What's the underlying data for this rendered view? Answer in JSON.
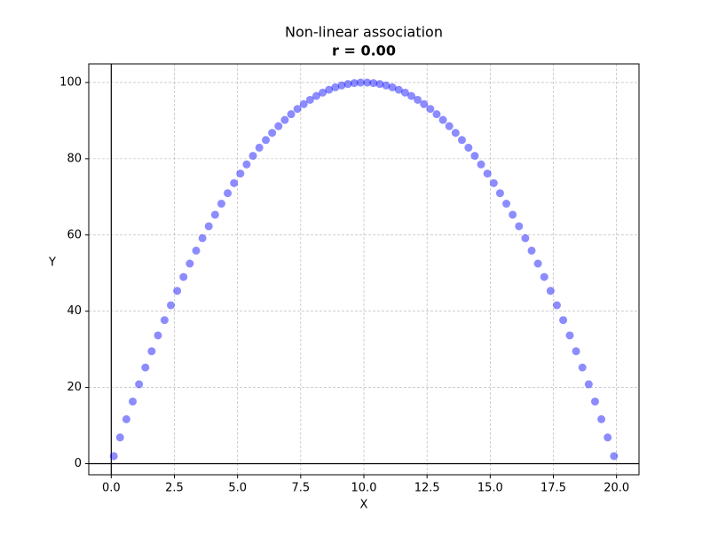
{
  "chart_data": {
    "type": "scatter",
    "title": "Non-linear association",
    "subtitle": "r = 0.00",
    "x_label": "X",
    "y_label": "Y",
    "series": [
      {
        "color": "#0000ff",
        "alpha": 0.45,
        "x": [
          0.1,
          0.35,
          0.6,
          0.85,
          1.1,
          1.35,
          1.6,
          1.85,
          2.11,
          2.36,
          2.61,
          2.86,
          3.11,
          3.36,
          3.61,
          3.86,
          4.11,
          4.36,
          4.61,
          4.86,
          5.11,
          5.36,
          5.61,
          5.86,
          6.12,
          6.37,
          6.62,
          6.87,
          7.12,
          7.37,
          7.62,
          7.87,
          8.12,
          8.37,
          8.62,
          8.87,
          9.12,
          9.37,
          9.62,
          9.87,
          10.13,
          10.38,
          10.63,
          10.88,
          11.13,
          11.38,
          11.63,
          11.88,
          12.13,
          12.38,
          12.63,
          12.88,
          13.13,
          13.38,
          13.63,
          13.88,
          14.14,
          14.39,
          14.64,
          14.89,
          15.14,
          15.39,
          15.64,
          15.89,
          16.14,
          16.39,
          16.64,
          16.89,
          17.14,
          17.39,
          17.64,
          17.89,
          18.15,
          18.4,
          18.65,
          18.9,
          19.15,
          19.4,
          19.65,
          19.9
        ],
        "values": [
          1.99,
          6.89,
          11.66,
          16.31,
          20.83,
          25.23,
          29.5,
          33.65,
          37.67,
          41.56,
          45.33,
          48.98,
          52.49,
          55.89,
          59.15,
          62.29,
          65.31,
          68.2,
          70.96,
          73.6,
          76.11,
          78.5,
          80.76,
          82.9,
          84.91,
          86.79,
          88.55,
          90.18,
          91.69,
          93.07,
          94.33,
          95.46,
          96.47,
          97.35,
          98.1,
          98.73,
          99.23,
          99.61,
          99.86,
          99.98,
          99.98,
          99.86,
          99.61,
          99.23,
          98.73,
          98.1,
          97.35,
          96.47,
          95.46,
          94.33,
          93.07,
          91.69,
          90.18,
          88.55,
          86.79,
          84.91,
          82.9,
          80.76,
          78.5,
          76.11,
          73.6,
          70.96,
          68.2,
          65.31,
          62.29,
          59.15,
          55.89,
          52.49,
          48.98,
          45.33,
          41.56,
          37.67,
          33.65,
          29.5,
          25.23,
          20.83,
          16.31,
          11.66,
          6.89,
          1.99
        ]
      }
    ],
    "xlim": [
      -0.89,
      20.89
    ],
    "ylim": [
      -2.91,
      104.88
    ],
    "xticks": [
      {
        "value": 0,
        "label": "0.0"
      },
      2.5,
      {
        "value": 5,
        "label": "5.0"
      },
      7.5,
      {
        "value": 10,
        "label": "10.0"
      },
      12.5,
      {
        "value": 15,
        "label": "15.0"
      },
      17.5,
      {
        "value": 20,
        "label": "20.0"
      }
    ],
    "yticks": [
      0,
      20,
      40,
      60,
      80,
      100
    ],
    "grid": true,
    "reference_lines": {
      "x": 0,
      "y": 0
    }
  }
}
